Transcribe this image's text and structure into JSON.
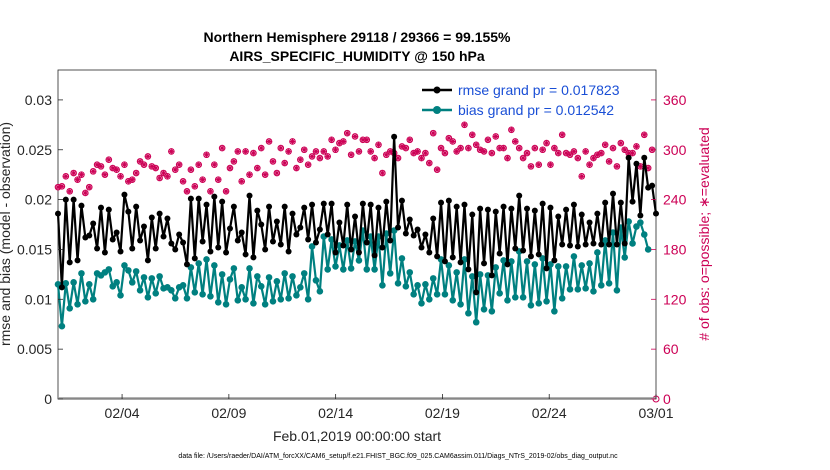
{
  "chart_data": {
    "type": "line",
    "title_line1": "Northern Hemisphere 29118 / 29366 = 99.155%",
    "title_line2": "AIRS_SPECIFIC_HUMIDITY @ 150 hPa",
    "xlabel": "Feb.01,2019 00:00:00 start",
    "ylabel": "rmse and bias (model - observation)",
    "ylabel_right": "# of obs: o=possible; ∗=evaluated",
    "x_ticks": [
      "02/04",
      "02/09",
      "02/14",
      "02/19",
      "02/24",
      "03/01"
    ],
    "y_ticks": [
      "0",
      "0.005",
      "0.01",
      "0.015",
      "0.02",
      "0.025",
      "0.03"
    ],
    "y2_ticks": [
      "0",
      "60",
      "120",
      "180",
      "240",
      "300",
      "360"
    ],
    "xlim": [
      1,
      29
    ],
    "ylim": [
      0,
      0.033
    ],
    "y2lim": [
      0,
      396
    ],
    "legend": [
      {
        "label": "rmse grand pr = 0.017823",
        "color": "#000000"
      },
      {
        "label": "bias grand pr = 0.012542",
        "color": "#008080"
      }
    ],
    "colors": {
      "rmse": "#000000",
      "bias": "#008080",
      "obs": "#cc0055",
      "legend_text": "#1a4fd6"
    },
    "series": [
      {
        "name": "rmse",
        "values": [
          0.0186,
          0.0112,
          0.02,
          0.0137,
          0.02,
          0.0139,
          0.0194,
          0.0162,
          0.0164,
          0.0176,
          0.0151,
          0.0192,
          0.0147,
          0.019,
          0.016,
          0.0167,
          0.0148,
          0.0205,
          0.0188,
          0.0151,
          0.0193,
          0.0159,
          0.0173,
          0.0139,
          0.0182,
          0.0151,
          0.0186,
          0.0163,
          0.0181,
          0.0156,
          0.015,
          0.0165,
          0.0157,
          0.0135,
          0.0201,
          0.0141,
          0.0201,
          0.0158,
          0.0195,
          0.0148,
          0.0203,
          0.0152,
          0.0198,
          0.0147,
          0.0171,
          0.0193,
          0.0159,
          0.0167,
          0.0145,
          0.0204,
          0.0142,
          0.0189,
          0.0175,
          0.015,
          0.0193,
          0.0158,
          0.0178,
          0.0155,
          0.0193,
          0.0148,
          0.0186,
          0.0165,
          0.0172,
          0.0192,
          0.016,
          0.0195,
          0.0157,
          0.017,
          0.0196,
          0.0165,
          0.0196,
          0.0147,
          0.0177,
          0.0154,
          0.0195,
          0.015,
          0.0183,
          0.0147,
          0.0196,
          0.0157,
          0.0195,
          0.0144,
          0.0192,
          0.0152,
          0.0198,
          0.0159,
          0.0263,
          0.0172,
          0.0199,
          0.0166,
          0.018,
          0.0164,
          0.017,
          0.0152,
          0.0165,
          0.0147,
          0.0181,
          0.0143,
          0.0197,
          0.0138,
          0.0199,
          0.0142,
          0.0193,
          0.0137,
          0.0195,
          0.013,
          0.0185,
          0.0107,
          0.0191,
          0.0136,
          0.019,
          0.0124,
          0.0188,
          0.0146,
          0.0193,
          0.0135,
          0.0191,
          0.0151,
          0.0204,
          0.0149,
          0.0191,
          0.0143,
          0.0189,
          0.0145,
          0.0196,
          0.0131,
          0.0192,
          0.0139,
          0.0183,
          0.0155,
          0.019,
          0.0154,
          0.0195,
          0.0153,
          0.0185,
          0.0155,
          0.0177,
          0.0156,
          0.0186,
          0.0155,
          0.0197,
          0.0155,
          0.0206,
          0.0155,
          0.0197,
          0.0156,
          0.0242,
          0.0198,
          0.0236,
          0.0184,
          0.0242,
          0.0212,
          0.0214,
          0.0186
        ]
      },
      {
        "name": "bias",
        "values": [
          0.0115,
          0.0073,
          0.0116,
          0.0091,
          0.0117,
          0.0095,
          0.0126,
          0.0098,
          0.0115,
          0.01,
          0.0126,
          0.0124,
          0.0127,
          0.013,
          0.0113,
          0.0117,
          0.0104,
          0.0134,
          0.0129,
          0.0117,
          0.0128,
          0.0109,
          0.0122,
          0.0102,
          0.0121,
          0.0106,
          0.0123,
          0.0111,
          0.0112,
          0.0109,
          0.0101,
          0.0112,
          0.0114,
          0.0101,
          0.0132,
          0.0107,
          0.0136,
          0.0105,
          0.014,
          0.0103,
          0.0134,
          0.0097,
          0.0125,
          0.0095,
          0.012,
          0.0131,
          0.0099,
          0.0112,
          0.01,
          0.0131,
          0.0096,
          0.0123,
          0.0113,
          0.0095,
          0.0122,
          0.0098,
          0.0118,
          0.01,
          0.0126,
          0.0101,
          0.0123,
          0.0104,
          0.0112,
          0.0126,
          0.01,
          0.0153,
          0.0119,
          0.0108,
          0.0163,
          0.013,
          0.016,
          0.0133,
          0.0154,
          0.013,
          0.0159,
          0.0131,
          0.0158,
          0.0139,
          0.0169,
          0.013,
          0.0163,
          0.013,
          0.0163,
          0.0114,
          0.0166,
          0.0126,
          0.0169,
          0.0116,
          0.0141,
          0.0113,
          0.0127,
          0.0105,
          0.0114,
          0.0096,
          0.0115,
          0.01,
          0.0121,
          0.0105,
          0.014,
          0.0105,
          0.0134,
          0.0099,
          0.0127,
          0.0095,
          0.014,
          0.0086,
          0.0123,
          0.0077,
          0.0125,
          0.009,
          0.0124,
          0.0088,
          0.0132,
          0.0106,
          0.0139,
          0.0099,
          0.0138,
          0.0102,
          0.0148,
          0.0102,
          0.0138,
          0.0094,
          0.0135,
          0.0096,
          0.0141,
          0.0098,
          0.0135,
          0.0088,
          0.0133,
          0.0101,
          0.0133,
          0.011,
          0.0143,
          0.011,
          0.0134,
          0.0111,
          0.0136,
          0.0108,
          0.0147,
          0.0114,
          0.0159,
          0.0116,
          0.0167,
          0.0109,
          0.0172,
          0.0142,
          0.0178,
          0.0156,
          0.0173,
          0.0177,
          0.0165,
          0.015
        ]
      }
    ],
    "obs_possible": [
      255,
      256,
      268,
      250,
      272,
      264,
      270,
      248,
      255,
      274,
      282,
      280,
      270,
      288,
      278,
      276,
      268,
      282,
      262,
      264,
      272,
      286,
      282,
      292,
      280,
      278,
      266,
      272,
      268,
      298,
      276,
      282,
      262,
      250,
      276,
      256,
      282,
      264,
      294,
      250,
      282,
      264,
      302,
      250,
      278,
      286,
      298,
      262,
      298,
      270,
      296,
      278,
      302,
      270,
      310,
      286,
      272,
      302,
      284,
      298,
      310,
      278,
      288,
      300,
      282,
      292,
      298,
      290,
      298,
      292,
      312,
      300,
      308,
      310,
      320,
      294,
      316,
      298,
      312,
      312,
      298,
      290,
      306,
      272,
      294,
      298,
      296,
      290,
      304,
      302,
      312,
      296,
      298,
      290,
      296,
      284,
      320,
      276,
      302,
      296,
      314,
      310,
      298,
      302,
      330,
      302,
      318,
      306,
      300,
      298,
      312,
      296,
      316,
      302,
      302,
      290,
      324,
      310,
      302,
      290,
      296,
      280,
      302,
      282,
      300,
      308,
      282,
      302,
      296,
      318,
      296,
      294,
      298,
      290,
      268,
      298,
      282,
      290,
      294,
      296,
      306,
      286,
      302,
      280,
      308,
      300,
      296,
      296,
      304,
      280,
      318,
      278,
      300,
      0
    ]
  },
  "footer": "data file: /Users/raeder/DAI/ATM_forcXX/CAM6_setup/f.e21.FHIST_BGC.f09_025.CAM6assim.011/Diags_NTrS_2019-02/obs_diag_output.nc"
}
